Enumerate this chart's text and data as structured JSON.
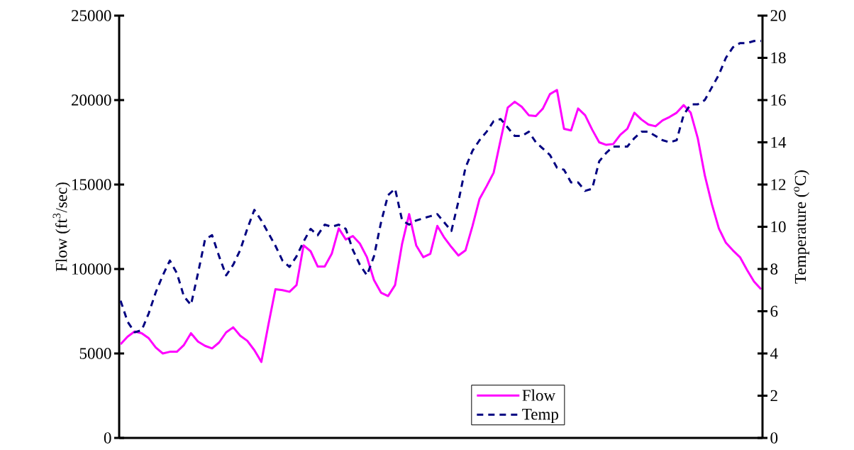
{
  "chart_data": {
    "type": "line",
    "ylabel": "Flow (ft$^{3}$/sec)",
    "y2label": "Temperature ($^{o}$C)",
    "categories": [
      null,
      null,
      null,
      null,
      null,
      null,
      null,
      null,
      null,
      null,
      null,
      null,
      null,
      null,
      null,
      null,
      null,
      null,
      null,
      null,
      null,
      null,
      null,
      null,
      null,
      null,
      null,
      null,
      null,
      null,
      null,
      null,
      null,
      null,
      null,
      null,
      null,
      null,
      null,
      null,
      null,
      null,
      null,
      null,
      null,
      null,
      null,
      null,
      null,
      null,
      null,
      null,
      null,
      null,
      null,
      null,
      null,
      null,
      null,
      null,
      null,
      null,
      null,
      null,
      null,
      null,
      null,
      null,
      null,
      null,
      null,
      null,
      null,
      null,
      null,
      null,
      null,
      null,
      null,
      null,
      null,
      null,
      null,
      null,
      null,
      null,
      null,
      null,
      null,
      null,
      null,
      null
    ],
    "series": [
      {
        "name": "Flow",
        "color": "#ff00ff",
        "line_style": "solid",
        "values": [
          5550,
          6000,
          6300,
          6200,
          5900,
          5350,
          5000,
          5100,
          5100,
          5500,
          6200,
          5700,
          5450,
          5300,
          5650,
          6250,
          6550,
          6050,
          5750,
          5200,
          4500,
          6700,
          8800,
          8750,
          8650,
          9050,
          11400,
          11050,
          10150,
          10150,
          10900,
          12400,
          11750,
          11950,
          11500,
          10700,
          9350,
          8600,
          8400,
          9050,
          11500,
          13250,
          11400,
          10700,
          10900,
          12550,
          11850,
          11300,
          10800,
          11100,
          12550,
          14150,
          14900,
          15700,
          17650,
          19550,
          19900,
          19600,
          19100,
          19050,
          19500,
          20350,
          20600,
          18300,
          18200,
          19500,
          19100,
          18250,
          17500,
          17350,
          17400,
          17950,
          18300,
          19250,
          18850,
          18550,
          18450,
          18800,
          19000,
          19250,
          19700,
          19250,
          17750,
          15550,
          13850,
          12400,
          11550,
          11100,
          10700,
          9950,
          9250,
          8800
        ]
      },
      {
        "name": "Temp",
        "color": "#000080",
        "line_style": "dashed",
        "axis": "y2",
        "values": [
          6.5,
          5.5,
          5.0,
          5.1,
          5.9,
          6.9,
          7.7,
          8.4,
          7.8,
          6.7,
          6.3,
          7.8,
          9.4,
          9.6,
          8.6,
          7.7,
          8.2,
          8.9,
          9.9,
          10.8,
          10.3,
          9.7,
          9.1,
          8.4,
          8.1,
          8.6,
          9.3,
          9.9,
          9.6,
          10.1,
          10.0,
          10.1,
          9.9,
          8.9,
          8.2,
          7.7,
          8.6,
          10.2,
          11.5,
          11.8,
          10.3,
          10.1,
          10.3,
          10.4,
          10.5,
          10.6,
          10.2,
          9.8,
          11.2,
          12.8,
          13.6,
          14.1,
          14.5,
          15.0,
          15.1,
          14.7,
          14.3,
          14.3,
          14.5,
          14.0,
          13.7,
          13.4,
          12.8,
          12.7,
          12.1,
          12.1,
          11.7,
          11.8,
          13.1,
          13.5,
          13.8,
          13.8,
          13.8,
          14.2,
          14.5,
          14.5,
          14.3,
          14.1,
          14.0,
          14.1,
          15.3,
          15.8,
          15.8,
          16.0,
          16.6,
          17.2,
          18.0,
          18.5,
          18.7,
          18.7,
          18.8,
          18.8
        ]
      }
    ],
    "ylim": [
      0,
      25000
    ],
    "yticks": [
      0,
      5000,
      10000,
      15000,
      20000,
      25000
    ],
    "y2lim": [
      0,
      20
    ],
    "y2ticks": [
      0,
      2,
      4,
      6,
      8,
      10,
      12,
      14,
      16,
      18,
      20
    ],
    "grid": false,
    "legend": "bottom",
    "marker": "none"
  }
}
